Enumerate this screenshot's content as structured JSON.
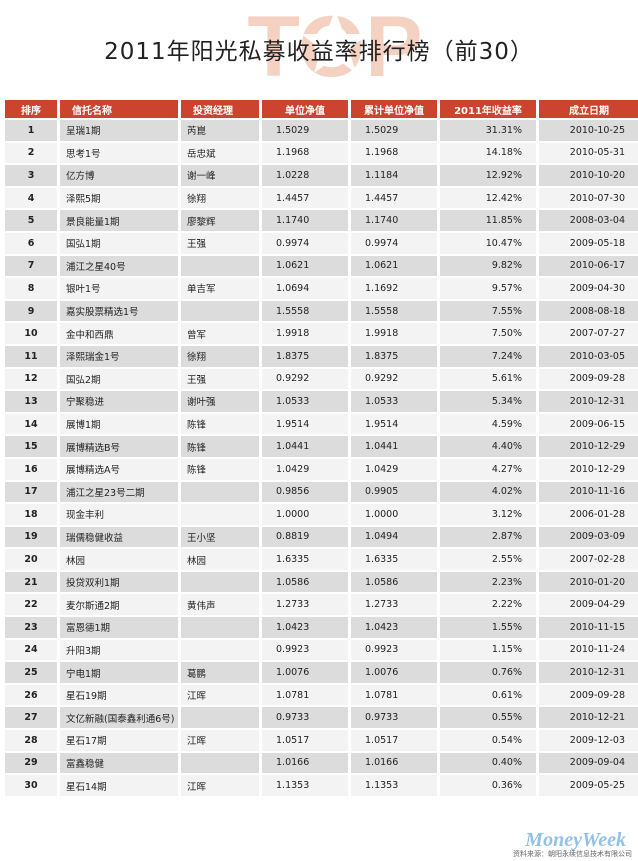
{
  "title": "2011年阳光私募收益率排行榜（前30）",
  "watermark_text": "TOP",
  "brand_color": "#cc4430",
  "headers": [
    "排序",
    "信托名称",
    "投资经理",
    "单位净值",
    "累计单位净值",
    "2011年收益率",
    "成立日期"
  ],
  "rows": [
    [
      "1",
      "呈瑞1期",
      "芮崑",
      "1.5029",
      "1.5029",
      "31.31%",
      "2010-10-25"
    ],
    [
      "2",
      "思考1号",
      "岳忠斌",
      "1.1968",
      "1.1968",
      "14.18%",
      "2010-05-31"
    ],
    [
      "3",
      "亿方博",
      "谢一峰",
      "1.0228",
      "1.1184",
      "12.92%",
      "2010-10-20"
    ],
    [
      "4",
      "泽熙5期",
      "徐翔",
      "1.4457",
      "1.4457",
      "12.42%",
      "2010-07-30"
    ],
    [
      "5",
      "景良能量1期",
      "廖黎辉",
      "1.1740",
      "1.1740",
      "11.85%",
      "2008-03-04"
    ],
    [
      "6",
      "国弘1期",
      "王强",
      "0.9974",
      "0.9974",
      "10.47%",
      "2009-05-18"
    ],
    [
      "7",
      "浦江之星40号",
      "",
      "1.0621",
      "1.0621",
      "9.82%",
      "2010-06-17"
    ],
    [
      "8",
      "银叶1号",
      "单吉军",
      "1.0694",
      "1.1692",
      "9.57%",
      "2009-04-30"
    ],
    [
      "9",
      "嘉实股票精选1号",
      "",
      "1.5558",
      "1.5558",
      "7.55%",
      "2008-08-18"
    ],
    [
      "10",
      "金中和西鼎",
      "曾军",
      "1.9918",
      "1.9918",
      "7.50%",
      "2007-07-27"
    ],
    [
      "11",
      "泽熙瑞金1号",
      "徐翔",
      "1.8375",
      "1.8375",
      "7.24%",
      "2010-03-05"
    ],
    [
      "12",
      "国弘2期",
      "王强",
      "0.9292",
      "0.9292",
      "5.61%",
      "2009-09-28"
    ],
    [
      "13",
      "宁聚稳进",
      "谢叶强",
      "1.0533",
      "1.0533",
      "5.34%",
      "2010-12-31"
    ],
    [
      "14",
      "展博1期",
      "陈锋",
      "1.9514",
      "1.9514",
      "4.59%",
      "2009-06-15"
    ],
    [
      "15",
      "展博精选B号",
      "陈锋",
      "1.0441",
      "1.0441",
      "4.40%",
      "2010-12-29"
    ],
    [
      "16",
      "展博精选A号",
      "陈锋",
      "1.0429",
      "1.0429",
      "4.27%",
      "2010-12-29"
    ],
    [
      "17",
      "浦江之星23号二期",
      "",
      "0.9856",
      "0.9905",
      "4.02%",
      "2010-11-16"
    ],
    [
      "18",
      "现金丰利",
      "",
      "1.0000",
      "1.0000",
      "3.12%",
      "2006-01-28"
    ],
    [
      "19",
      "瑞儒稳健收益",
      "王小坚",
      "0.8819",
      "1.0494",
      "2.87%",
      "2009-03-09"
    ],
    [
      "20",
      "林园",
      "林园",
      "1.6335",
      "1.6335",
      "2.55%",
      "2007-02-28"
    ],
    [
      "21",
      "投贷双利1期",
      "",
      "1.0586",
      "1.0586",
      "2.23%",
      "2010-01-20"
    ],
    [
      "22",
      "麦尔斯通2期",
      "黄伟声",
      "1.2733",
      "1.2733",
      "2.22%",
      "2009-04-29"
    ],
    [
      "23",
      "富恩德1期",
      "",
      "1.0423",
      "1.0423",
      "1.55%",
      "2010-11-15"
    ],
    [
      "24",
      "升阳3期",
      "",
      "0.9923",
      "0.9923",
      "1.15%",
      "2010-11-24"
    ],
    [
      "25",
      "宁电1期",
      "葛鹏",
      "1.0076",
      "1.0076",
      "0.76%",
      "2010-12-31"
    ],
    [
      "26",
      "星石19期",
      "江晖",
      "1.0781",
      "1.0781",
      "0.61%",
      "2009-09-28"
    ],
    [
      "27",
      "文亿新融(国泰鑫利通6号)",
      "",
      "0.9733",
      "0.9733",
      "0.55%",
      "2010-12-21"
    ],
    [
      "28",
      "星石17期",
      "江晖",
      "1.0517",
      "1.0517",
      "0.54%",
      "2009-12-03"
    ],
    [
      "29",
      "富鑫稳健",
      "",
      "1.0166",
      "1.0166",
      "0.40%",
      "2009-09-04"
    ],
    [
      "30",
      "星石14期",
      "江晖",
      "1.1353",
      "1.1353",
      "0.36%",
      "2009-05-25"
    ]
  ],
  "source": "资料来源：朝阳永续信息技术有限公司",
  "logo_text": "MoneyWeek"
}
